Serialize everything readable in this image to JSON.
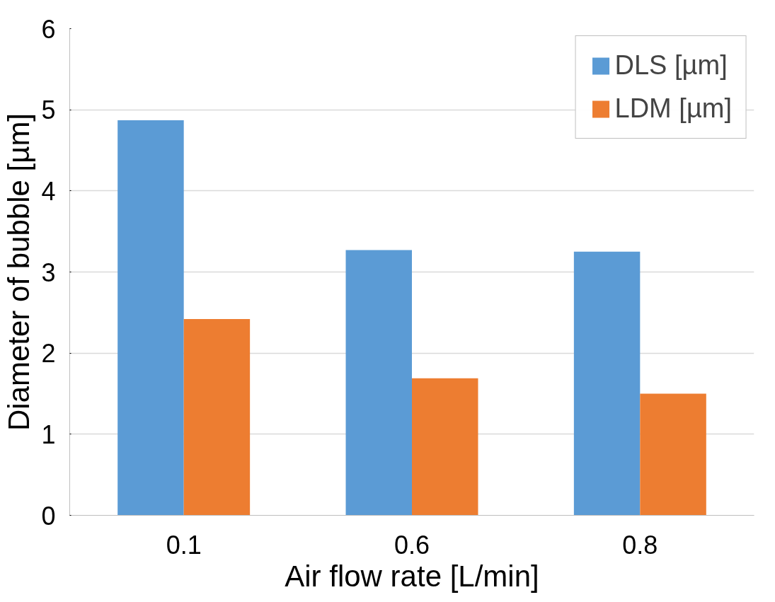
{
  "chart_data": {
    "type": "bar",
    "xlabel": "Air flow rate [L/min]",
    "ylabel": "Diameter of bubble [µm]",
    "categories": [
      "0.1",
      "0.6",
      "0.8"
    ],
    "series": [
      {
        "name": "DLS [µm]",
        "color": "#5b9bd5",
        "values": [
          4.87,
          3.27,
          3.25
        ]
      },
      {
        "name": "LDM [µm]",
        "color": "#ed7d31",
        "values": [
          2.42,
          1.69,
          1.5
        ]
      }
    ],
    "ylim": [
      0,
      6
    ],
    "yticks": [
      0,
      1,
      2,
      3,
      4,
      5,
      6
    ],
    "grid": "y",
    "legend": "top right"
  }
}
